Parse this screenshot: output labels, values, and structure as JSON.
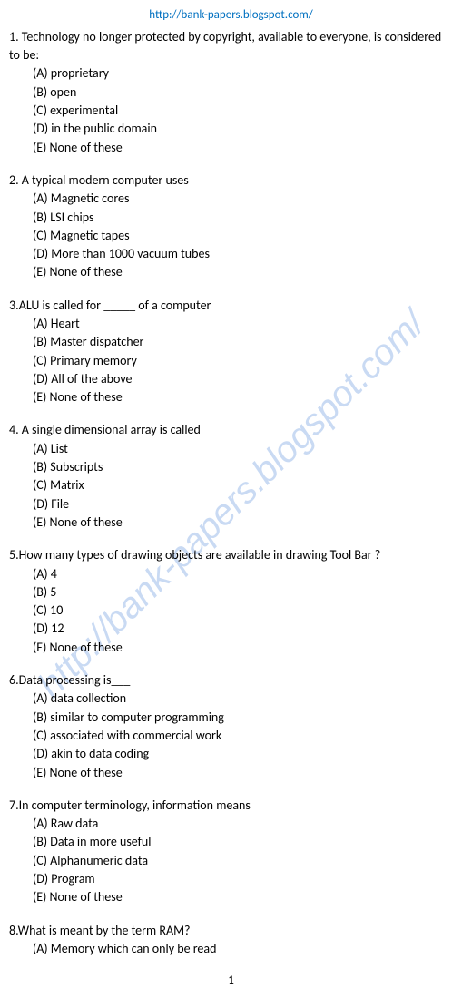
{
  "header_url": "http://bank-papers.blogspot.com/",
  "watermark": "http://bank-papers.blogspot.com/",
  "page_number": "1",
  "questions": [
    {
      "num": "1.",
      "text": "Technology no longer protected by copyright, available to everyone, is considered to be:",
      "options": [
        "(A) proprietary",
        "(B) open",
        "(C) experimental",
        "(D) in the public domain",
        "(E)  None of these"
      ]
    },
    {
      "num": "2.",
      "text": "A typical modern computer uses",
      "options": [
        "(A) Magnetic cores",
        "(B) LSI chips",
        "(C) Magnetic tapes",
        "(D) More than 1000 vacuum tubes",
        "(E)  None of these"
      ]
    },
    {
      "num": "3.",
      "text": "ALU is called for _____ of a computer",
      "nospace": true,
      "options": [
        "(A) Heart",
        "(B) Master dispatcher",
        "(C) Primary memory",
        "(D) All of the above",
        "(E)  None of these"
      ]
    },
    {
      "num": "4.",
      "text": "A single dimensional array is called",
      "options": [
        "(A) List",
        "(B) Subscripts",
        "(C) Matrix",
        "(D) File",
        "(E)  None of these"
      ]
    },
    {
      "num": "5.",
      "text": "How many types of drawing objects are available in drawing Tool Bar ?",
      "nospace": true,
      "options": [
        "(A) 4",
        "(B) 5",
        "(C) 10",
        "(D) 12",
        "(E)  None of these"
      ]
    },
    {
      "num": "6.",
      "text": "Data processing is___",
      "nospace": true,
      "options": [
        "(A) data collection",
        "(B) similar to computer programming",
        "(C) associated with commercial work",
        "(D) akin to data coding",
        "(E)  None of these"
      ]
    },
    {
      "num": "7.",
      "text": "In computer terminology, information means",
      "nospace": true,
      "options": [
        "(A) Raw data",
        "(B) Data in more useful",
        "(C) Alphanumeric data",
        "(D) Program",
        "(E)  None of these"
      ]
    },
    {
      "num": "8.",
      "text": "What is meant by the term RAM?",
      "nospace": true,
      "options": [
        "(A) Memory which can only be read"
      ]
    }
  ]
}
